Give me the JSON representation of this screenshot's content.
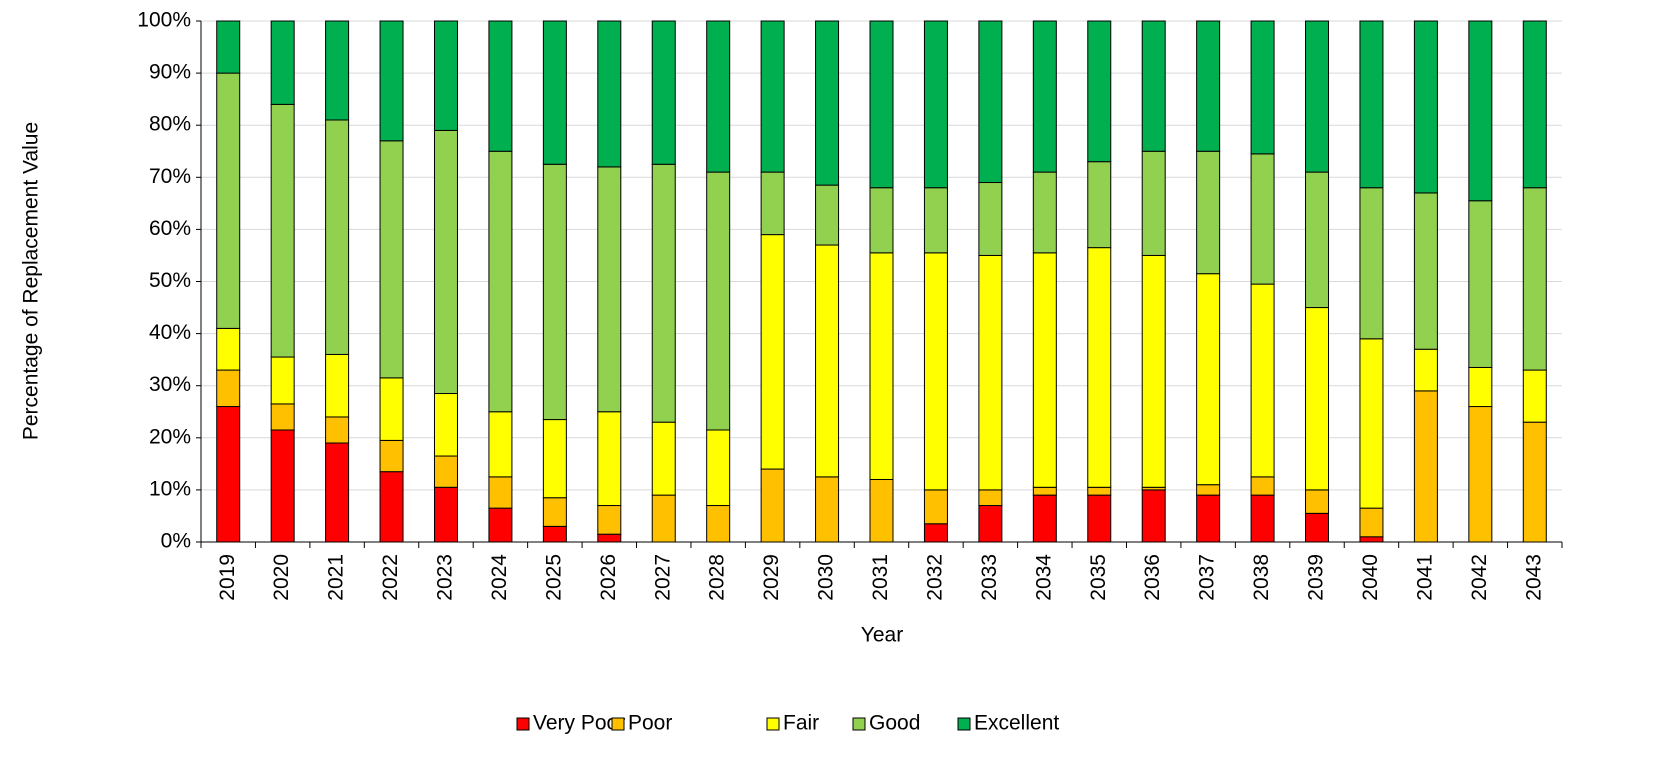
{
  "chart_data": {
    "type": "stacked_bar",
    "x_label": "Year",
    "y_label": "Percentage of Replacement Value",
    "categories": [
      "2019",
      "2020",
      "2021",
      "2022",
      "2023",
      "2024",
      "2025",
      "2026",
      "2027",
      "2028",
      "2029",
      "2030",
      "2031",
      "2032",
      "2033",
      "2034",
      "2035",
      "2036",
      "2037",
      "2038",
      "2039",
      "2040",
      "2041",
      "2042",
      "2043"
    ],
    "series": [
      {
        "name": "Very Poor",
        "color": "#ff0000",
        "values": [
          26,
          21.5,
          19,
          13.5,
          10.5,
          6.5,
          3,
          1.5,
          0,
          0,
          0,
          0,
          0,
          3.5,
          7,
          9,
          9,
          10,
          9,
          9,
          5.5,
          1,
          0,
          0,
          0
        ]
      },
      {
        "name": "Poor",
        "color": "#ffc000",
        "values": [
          7,
          5,
          5,
          6,
          6,
          6,
          5.5,
          5.5,
          9,
          7,
          14,
          12.5,
          12,
          6.5,
          3,
          1.5,
          1.5,
          0.5,
          2,
          3.5,
          4.5,
          5.5,
          29,
          26,
          23
        ]
      },
      {
        "name": "Fair",
        "color": "#ffff00",
        "values": [
          8,
          9,
          12,
          12,
          12,
          12.5,
          15,
          18,
          14,
          14.5,
          45,
          44.5,
          43.5,
          45.5,
          45,
          45,
          46,
          44.5,
          40.5,
          37,
          35,
          32.5,
          8,
          7.5,
          10
        ]
      },
      {
        "name": "Good",
        "color": "#92d050",
        "values": [
          49,
          48.5,
          45,
          45.5,
          50.5,
          50,
          49,
          47,
          49.5,
          49.5,
          12,
          11.5,
          12.5,
          12.5,
          14,
          15.5,
          16.5,
          20,
          23.5,
          25,
          26,
          29,
          30,
          32,
          35
        ]
      },
      {
        "name": "Excellent",
        "color": "#00b050",
        "values": [
          10,
          16,
          19,
          23,
          21,
          25,
          27.5,
          28,
          27.5,
          29,
          29,
          31.5,
          32,
          32,
          31,
          29,
          27,
          25,
          25,
          25.5,
          29,
          32,
          33,
          34.5,
          32
        ]
      }
    ],
    "ylim": [
      0,
      100
    ],
    "yticks": [
      {
        "value": 0,
        "label": "0%"
      },
      {
        "value": 10,
        "label": "10%"
      },
      {
        "value": 20,
        "label": "20%"
      },
      {
        "value": 30,
        "label": "30%"
      },
      {
        "value": 40,
        "label": "40%"
      },
      {
        "value": 50,
        "label": "50%"
      },
      {
        "value": 60,
        "label": "60%"
      },
      {
        "value": 70,
        "label": "70%"
      },
      {
        "value": 80,
        "label": "80%"
      },
      {
        "value": 90,
        "label": "90%"
      },
      {
        "value": 100,
        "label": "100%"
      }
    ],
    "grid": true,
    "legend": "bottom"
  }
}
